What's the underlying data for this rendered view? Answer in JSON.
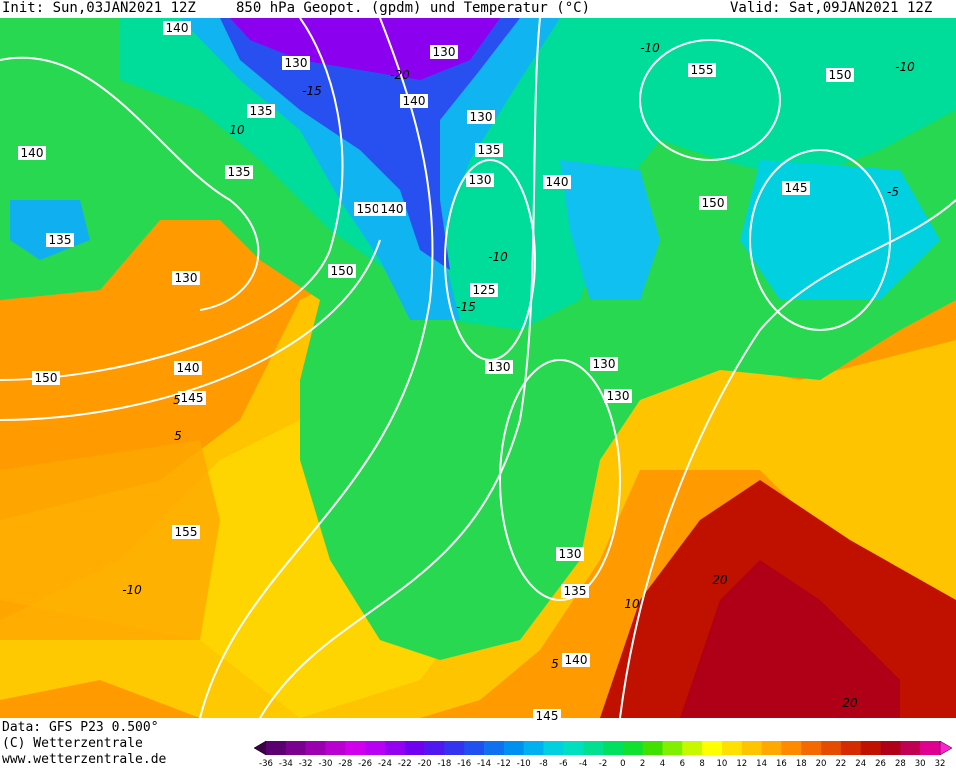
{
  "header": {
    "init": "Init: Sun,03JAN2021 12Z",
    "title": "850 hPa Geopot. (gpdm) und Temperatur (°C)",
    "valid": "Valid: Sat,09JAN2021 12Z"
  },
  "footer": {
    "data": "Data: GFS P23 0.500°",
    "copyright": "(C) Wetterzentrale",
    "url": "www.wetterzentrale.de"
  },
  "map": {
    "geopotential_labels": [
      "140",
      "130",
      "135",
      "140",
      "135",
      "135",
      "130",
      "150",
      "150",
      "140",
      "130",
      "140",
      "130",
      "135",
      "130",
      "140",
      "125",
      "130",
      "130",
      "130",
      "155",
      "150",
      "145",
      "150",
      "140",
      "145",
      "150",
      "155",
      "130",
      "135",
      "140",
      "145"
    ],
    "temperature_labels": [
      "-10",
      "-10",
      "-15",
      "-20",
      "10",
      "-10",
      "-15",
      "5",
      "-5",
      "5",
      "-10",
      "10",
      "20",
      "5",
      "20"
    ]
  },
  "colorbar": {
    "labels": [
      "-36",
      "-34",
      "-32",
      "-30",
      "-28",
      "-26",
      "-24",
      "-22",
      "-20",
      "-18",
      "-16",
      "-14",
      "-12",
      "-10",
      "-8",
      "-6",
      "-4",
      "-2",
      "0",
      "2",
      "4",
      "6",
      "8",
      "10",
      "12",
      "14",
      "16",
      "18",
      "20",
      "22",
      "24",
      "26",
      "28",
      "30",
      "32"
    ],
    "colors": [
      "#3c0048",
      "#5a0070",
      "#7a0090",
      "#9a00b0",
      "#b800d0",
      "#d000ec",
      "#b800f4",
      "#9400f0",
      "#7000f0",
      "#5018f0",
      "#3434f0",
      "#2050f0",
      "#1070f0",
      "#0090f0",
      "#00b0f0",
      "#00d0e0",
      "#00e0c0",
      "#00e090",
      "#00e060",
      "#10e030",
      "#40e000",
      "#80f000",
      "#c8f800",
      "#ffff00",
      "#ffe000",
      "#ffc400",
      "#ffa800",
      "#ff8a00",
      "#f46a00",
      "#e44c00",
      "#d42c00",
      "#c01000",
      "#b00018",
      "#c00050",
      "#e00090",
      "#ff20d0"
    ]
  }
}
